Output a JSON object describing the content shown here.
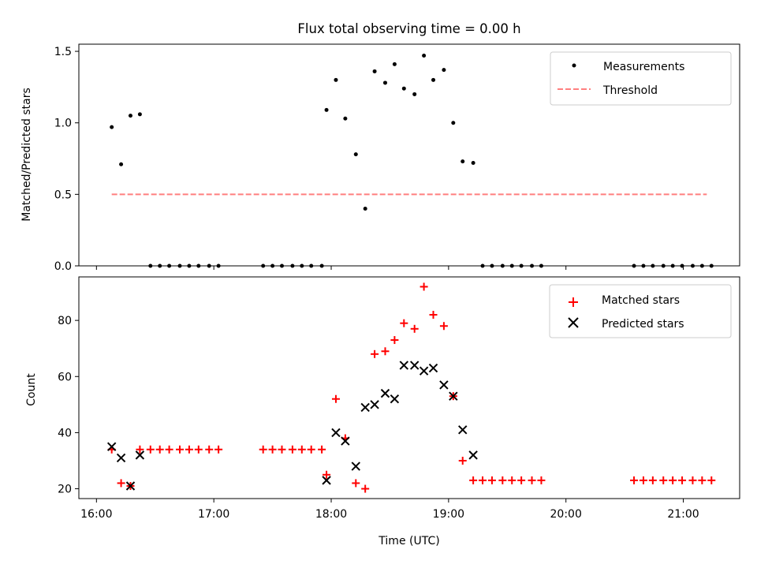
{
  "title": "Flux total observing time = 0.00 h",
  "chart_data": [
    {
      "type": "scatter",
      "ylabel": "Matched/Predicted stars",
      "xlim": [
        15.85,
        21.48
      ],
      "ylim": [
        0,
        1.55
      ],
      "yticks": [
        {
          "value": 0,
          "label": "0.0"
        },
        {
          "value": 0.5,
          "label": "0.5"
        },
        {
          "value": 1.0,
          "label": "1.0"
        },
        {
          "value": 1.5,
          "label": "1.5"
        }
      ],
      "legend": "top-right",
      "legend_entries": {
        "measurements": "Measurements",
        "threshold": "Threshold"
      },
      "threshold": {
        "name": "Threshold",
        "value": 0.5,
        "x_range": [
          16.13,
          21.2
        ],
        "color": "#ff7f7f"
      },
      "series": [
        {
          "name": "Measurements",
          "color": "#000000",
          "points": [
            [
              16.13,
              0.97
            ],
            [
              16.21,
              0.71
            ],
            [
              16.29,
              1.05
            ],
            [
              16.37,
              1.06
            ],
            [
              16.46,
              0
            ],
            [
              16.54,
              0
            ],
            [
              16.62,
              0
            ],
            [
              16.71,
              0
            ],
            [
              16.79,
              0
            ],
            [
              16.87,
              0
            ],
            [
              16.96,
              0
            ],
            [
              17.04,
              0
            ],
            [
              17.42,
              0
            ],
            [
              17.5,
              0
            ],
            [
              17.58,
              0
            ],
            [
              17.67,
              0
            ],
            [
              17.75,
              0
            ],
            [
              17.83,
              0
            ],
            [
              17.92,
              0
            ],
            [
              17.96,
              1.09
            ],
            [
              18.04,
              1.3
            ],
            [
              18.12,
              1.03
            ],
            [
              18.21,
              0.78
            ],
            [
              18.29,
              0.4
            ],
            [
              18.37,
              1.36
            ],
            [
              18.46,
              1.28
            ],
            [
              18.54,
              1.41
            ],
            [
              18.62,
              1.24
            ],
            [
              18.71,
              1.2
            ],
            [
              18.79,
              1.47
            ],
            [
              18.87,
              1.3
            ],
            [
              18.96,
              1.37
            ],
            [
              19.04,
              1.0
            ],
            [
              19.12,
              0.73
            ],
            [
              19.21,
              0.72
            ],
            [
              19.29,
              0
            ],
            [
              19.37,
              0
            ],
            [
              19.46,
              0
            ],
            [
              19.54,
              0
            ],
            [
              19.62,
              0
            ],
            [
              19.71,
              0
            ],
            [
              19.79,
              0
            ],
            [
              20.58,
              0
            ],
            [
              20.66,
              0
            ],
            [
              20.74,
              0
            ],
            [
              20.83,
              0
            ],
            [
              20.91,
              0
            ],
            [
              20.99,
              0
            ],
            [
              21.08,
              0
            ],
            [
              21.16,
              0
            ],
            [
              21.24,
              0
            ]
          ]
        }
      ]
    },
    {
      "type": "scatter",
      "xlabel": "Time (UTC)",
      "ylabel": "Count",
      "xlim": [
        15.85,
        21.48
      ],
      "ylim": [
        16.5,
        95.5
      ],
      "xticks": [
        {
          "value": 16,
          "label": "16:00"
        },
        {
          "value": 17,
          "label": "17:00"
        },
        {
          "value": 18,
          "label": "18:00"
        },
        {
          "value": 19,
          "label": "19:00"
        },
        {
          "value": 20,
          "label": "20:00"
        },
        {
          "value": 21,
          "label": "21:00"
        }
      ],
      "yticks": [
        {
          "value": 20,
          "label": "20"
        },
        {
          "value": 40,
          "label": "40"
        },
        {
          "value": 60,
          "label": "60"
        },
        {
          "value": 80,
          "label": "80"
        }
      ],
      "legend": "top-right",
      "legend_entries": {
        "matched": "Matched stars",
        "predicted": "Predicted stars"
      },
      "series": [
        {
          "name": "Matched stars",
          "marker": "+",
          "color": "#ff0000",
          "points": [
            [
              16.13,
              34
            ],
            [
              16.21,
              22
            ],
            [
              16.29,
              21
            ],
            [
              16.37,
              34
            ],
            [
              16.46,
              34
            ],
            [
              16.54,
              34
            ],
            [
              16.62,
              34
            ],
            [
              16.71,
              34
            ],
            [
              16.79,
              34
            ],
            [
              16.87,
              34
            ],
            [
              16.96,
              34
            ],
            [
              17.04,
              34
            ],
            [
              17.42,
              34
            ],
            [
              17.5,
              34
            ],
            [
              17.58,
              34
            ],
            [
              17.67,
              34
            ],
            [
              17.75,
              34
            ],
            [
              17.83,
              34
            ],
            [
              17.92,
              34
            ],
            [
              17.96,
              25
            ],
            [
              18.04,
              52
            ],
            [
              18.12,
              38
            ],
            [
              18.21,
              22
            ],
            [
              18.29,
              20
            ],
            [
              18.37,
              68
            ],
            [
              18.46,
              69
            ],
            [
              18.54,
              73
            ],
            [
              18.62,
              79
            ],
            [
              18.71,
              77
            ],
            [
              18.79,
              92
            ],
            [
              18.87,
              82
            ],
            [
              18.96,
              78
            ],
            [
              19.04,
              53
            ],
            [
              19.12,
              30
            ],
            [
              19.21,
              23
            ],
            [
              19.29,
              23
            ],
            [
              19.37,
              23
            ],
            [
              19.46,
              23
            ],
            [
              19.54,
              23
            ],
            [
              19.62,
              23
            ],
            [
              19.71,
              23
            ],
            [
              19.79,
              23
            ],
            [
              20.58,
              23
            ],
            [
              20.66,
              23
            ],
            [
              20.74,
              23
            ],
            [
              20.83,
              23
            ],
            [
              20.91,
              23
            ],
            [
              20.99,
              23
            ],
            [
              21.08,
              23
            ],
            [
              21.16,
              23
            ],
            [
              21.24,
              23
            ]
          ]
        },
        {
          "name": "Predicted stars",
          "marker": "x",
          "color": "#000000",
          "points": [
            [
              16.13,
              35
            ],
            [
              16.21,
              31
            ],
            [
              16.29,
              21
            ],
            [
              16.37,
              32
            ],
            [
              17.96,
              23
            ],
            [
              18.04,
              40
            ],
            [
              18.12,
              37
            ],
            [
              18.21,
              28
            ],
            [
              18.29,
              49
            ],
            [
              18.37,
              50
            ],
            [
              18.46,
              54
            ],
            [
              18.54,
              52
            ],
            [
              18.62,
              64
            ],
            [
              18.71,
              64
            ],
            [
              18.79,
              62
            ],
            [
              18.87,
              63
            ],
            [
              18.96,
              57
            ],
            [
              19.04,
              53
            ],
            [
              19.12,
              41
            ],
            [
              19.21,
              32
            ]
          ]
        }
      ]
    }
  ]
}
